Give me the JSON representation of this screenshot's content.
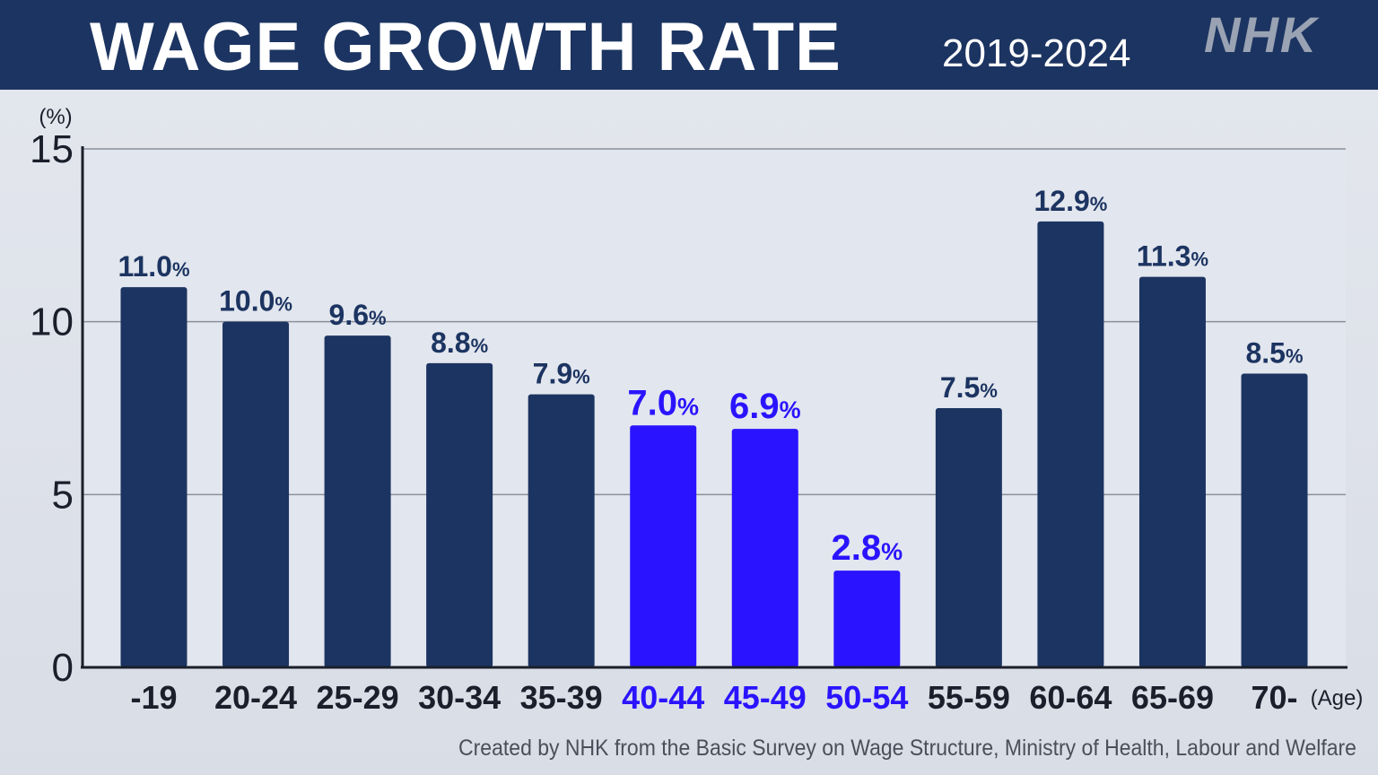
{
  "header": {
    "title": "WAGE GROWTH RATE",
    "subtitle": "2019-2024",
    "logo": "NHK"
  },
  "source": "Created by NHK from the Basic Survey on Wage Structure, Ministry of Health, Labour and Welfare",
  "colors": {
    "header_bg": "#1c3461",
    "bar_default": "#1c3461",
    "bar_highlight": "#2a14ff",
    "label_default": "#1c3461",
    "label_highlight": "#2a14ff"
  },
  "chart_data": {
    "type": "bar",
    "title": "WAGE GROWTH RATE",
    "subtitle": "2019-2024",
    "ylabel": "(%)",
    "xlabel": "(Age)",
    "ylim": [
      0,
      15
    ],
    "yticks": [
      0,
      5,
      10,
      15
    ],
    "grid": true,
    "categories": [
      "-19",
      "20-24",
      "25-29",
      "30-34",
      "35-39",
      "40-44",
      "45-49",
      "50-54",
      "55-59",
      "60-64",
      "65-69",
      "70-"
    ],
    "values": [
      11.0,
      10.0,
      9.6,
      8.8,
      7.9,
      7.0,
      6.9,
      2.8,
      7.5,
      12.9,
      11.3,
      8.5
    ],
    "value_labels": [
      "11.0",
      "10.0",
      "9.6",
      "8.8",
      "7.9",
      "7.0",
      "6.9",
      "2.8",
      "7.5",
      "12.9",
      "11.3",
      "8.5"
    ],
    "value_unit": "%",
    "highlighted": [
      "40-44",
      "45-49",
      "50-54"
    ]
  }
}
